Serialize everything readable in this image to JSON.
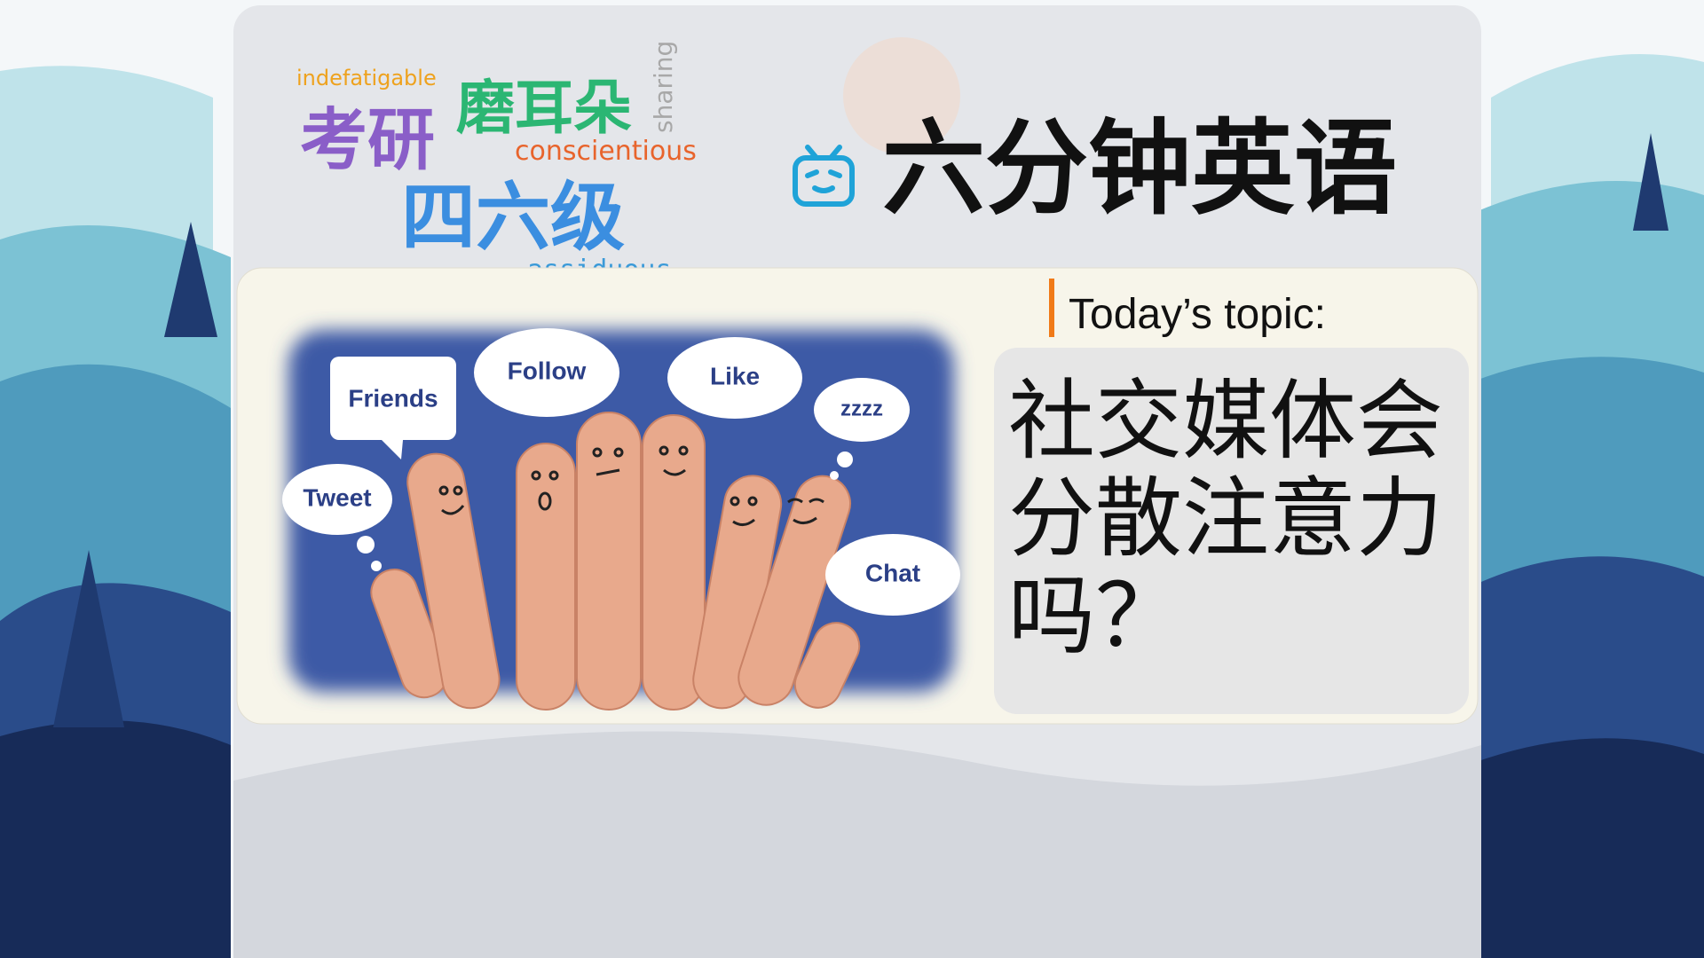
{
  "word_cloud": {
    "words": [
      "indefatigable",
      "考研",
      "磨耳朵",
      "sharing",
      "conscientious",
      "四六级",
      "assiduous"
    ]
  },
  "header": {
    "title": "六分钟英语"
  },
  "image": {
    "bubbles": [
      "Friends",
      "Follow",
      "Like",
      "zzzz",
      "Tweet",
      "Chat"
    ]
  },
  "topic": {
    "label": "Today’s topic:",
    "lines": [
      "社交媒体会",
      "分散注意力",
      "吗？"
    ]
  }
}
